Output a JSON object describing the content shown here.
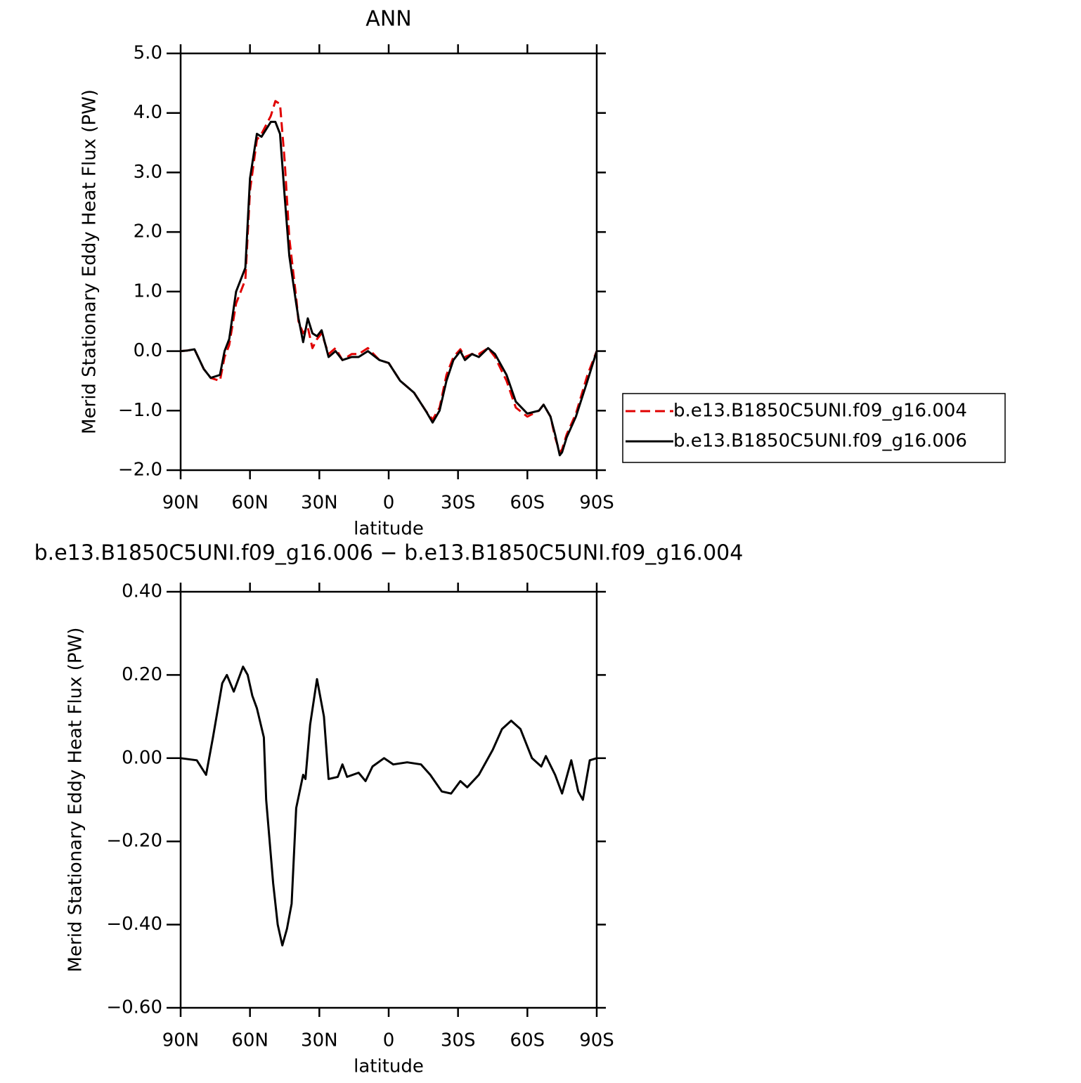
{
  "chart_data": [
    {
      "type": "line",
      "title": "ANN",
      "x_label": "latitude",
      "y_label": "Merid Stationary Eddy Heat Flux (PW)",
      "xlim": [
        90,
        -90
      ],
      "xticks": [
        {
          "value": 90,
          "label": "90N"
        },
        {
          "value": 60,
          "label": "60N"
        },
        {
          "value": 30,
          "label": "30N"
        },
        0,
        {
          "value": -30,
          "label": "30S"
        },
        {
          "value": -60,
          "label": "60S"
        },
        {
          "value": -90,
          "label": "90S"
        }
      ],
      "ylim": [
        -2,
        5
      ],
      "yticks": [
        {
          "value": -2,
          "label": "−2.0"
        },
        {
          "value": -1,
          "label": "−1.0"
        },
        {
          "value": 0,
          "label": "0.0"
        },
        {
          "value": 1,
          "label": "1.0"
        },
        {
          "value": 2,
          "label": "2.0"
        },
        {
          "value": 3,
          "label": "3.0"
        },
        {
          "value": 4,
          "label": "4.0"
        },
        {
          "value": 5,
          "label": "5.0"
        }
      ],
      "legend": "right",
      "x": [
        90,
        87,
        84,
        80,
        77,
        73,
        71,
        69,
        66,
        62,
        60,
        57,
        55,
        51,
        49,
        47,
        45,
        43,
        40,
        39,
        37,
        35,
        33,
        31,
        29,
        26,
        23,
        20,
        16,
        13,
        9,
        4,
        0,
        -5,
        -11,
        -16,
        -19,
        -22,
        -25,
        -28,
        -31,
        -33,
        -36,
        -39,
        -43,
        -46,
        -51,
        -55,
        -60,
        -65,
        -67,
        -70,
        -72,
        -74,
        -75,
        -77,
        -81,
        -86,
        -90
      ],
      "series": [
        {
          "name": "b.e13.B1850C5UNI.f09_g16.004",
          "color": "#e00000",
          "style": "dashed",
          "values": [
            0,
            0.01,
            0.03,
            -0.3,
            -0.45,
            -0.5,
            -0.1,
            0.1,
            0.8,
            1.2,
            2.7,
            3.55,
            3.65,
            3.95,
            4.2,
            4.15,
            3.2,
            1.9,
            0.9,
            0.5,
            0.3,
            0.4,
            0.05,
            0.2,
            0.3,
            -0.05,
            0.05,
            -0.15,
            -0.05,
            -0.05,
            0.05,
            -0.15,
            -0.2,
            -0.5,
            -0.7,
            -1.0,
            -1.15,
            -0.95,
            -0.4,
            -0.1,
            0.03,
            -0.1,
            -0.05,
            -0.05,
            0.05,
            -0.1,
            -0.5,
            -0.95,
            -1.1,
            -1.0,
            -0.9,
            -1.1,
            -1.45,
            -1.7,
            -1.65,
            -1.4,
            -1.05,
            -0.4,
            0
          ]
        },
        {
          "name": "b.e13.B1850C5UNI.f09_g16.006",
          "color": "#000000",
          "style": "solid",
          "values": [
            0,
            0.01,
            0.03,
            -0.3,
            -0.45,
            -0.4,
            0.0,
            0.2,
            1.0,
            1.4,
            2.9,
            3.65,
            3.6,
            3.85,
            3.85,
            3.65,
            2.6,
            1.6,
            0.8,
            0.55,
            0.15,
            0.55,
            0.3,
            0.25,
            0.35,
            -0.1,
            0.0,
            -0.15,
            -0.1,
            -0.1,
            0.0,
            -0.15,
            -0.2,
            -0.5,
            -0.7,
            -1.0,
            -1.2,
            -1.0,
            -0.5,
            -0.15,
            0.0,
            -0.15,
            -0.05,
            -0.1,
            0.05,
            -0.05,
            -0.4,
            -0.85,
            -1.05,
            -1.0,
            -0.9,
            -1.1,
            -1.4,
            -1.75,
            -1.7,
            -1.45,
            -1.1,
            -0.5,
            0
          ]
        }
      ]
    },
    {
      "type": "line",
      "title": "b.e13.B1850C5UNI.f09_g16.006 − b.e13.B1850C5UNI.f09_g16.004",
      "x_label": "latitude",
      "y_label": "Merid Stationary Eddy Heat Flux (PW)",
      "xlim": [
        90,
        -90
      ],
      "xticks": [
        {
          "value": 90,
          "label": "90N"
        },
        {
          "value": 60,
          "label": "60N"
        },
        {
          "value": 30,
          "label": "30N"
        },
        0,
        {
          "value": -30,
          "label": "30S"
        },
        {
          "value": -60,
          "label": "60S"
        },
        {
          "value": -90,
          "label": "90S"
        }
      ],
      "ylim": [
        -0.6,
        0.4
      ],
      "yticks": [
        {
          "value": -0.6,
          "label": "−0.60"
        },
        {
          "value": -0.4,
          "label": "−0.40"
        },
        {
          "value": -0.2,
          "label": "−0.20"
        },
        {
          "value": 0,
          "label": "0.00"
        },
        {
          "value": 0.2,
          "label": "0.20"
        },
        {
          "value": 0.4,
          "label": "0.40"
        }
      ],
      "color": "#000000",
      "x": [
        90,
        83,
        79,
        76,
        72,
        70,
        67,
        63,
        61,
        59,
        57,
        54,
        53,
        50,
        48,
        46,
        44,
        42,
        40,
        37,
        36,
        34,
        31,
        28,
        26,
        22,
        20,
        18,
        13,
        10,
        7,
        2,
        -2,
        -8,
        -14,
        -18,
        -23,
        -27,
        -31,
        -34,
        -39,
        -45,
        -49,
        -53,
        -57,
        -62,
        -66,
        -68,
        -72,
        -75,
        -79,
        -82,
        -84,
        -87,
        -90
      ],
      "values": [
        0,
        -0.005,
        -0.04,
        0.05,
        0.18,
        0.2,
        0.16,
        0.22,
        0.2,
        0.15,
        0.12,
        0.05,
        -0.1,
        -0.3,
        -0.4,
        -0.45,
        -0.41,
        -0.35,
        -0.12,
        -0.04,
        -0.05,
        0.08,
        0.19,
        0.1,
        -0.05,
        -0.045,
        -0.015,
        -0.045,
        -0.035,
        -0.055,
        -0.02,
        0.0,
        -0.015,
        -0.01,
        -0.015,
        -0.04,
        -0.08,
        -0.085,
        -0.055,
        -0.07,
        -0.04,
        0.02,
        0.07,
        0.09,
        0.07,
        0.0,
        -0.02,
        0.005,
        -0.04,
        -0.085,
        -0.005,
        -0.08,
        -0.1,
        -0.005,
        0
      ]
    }
  ]
}
